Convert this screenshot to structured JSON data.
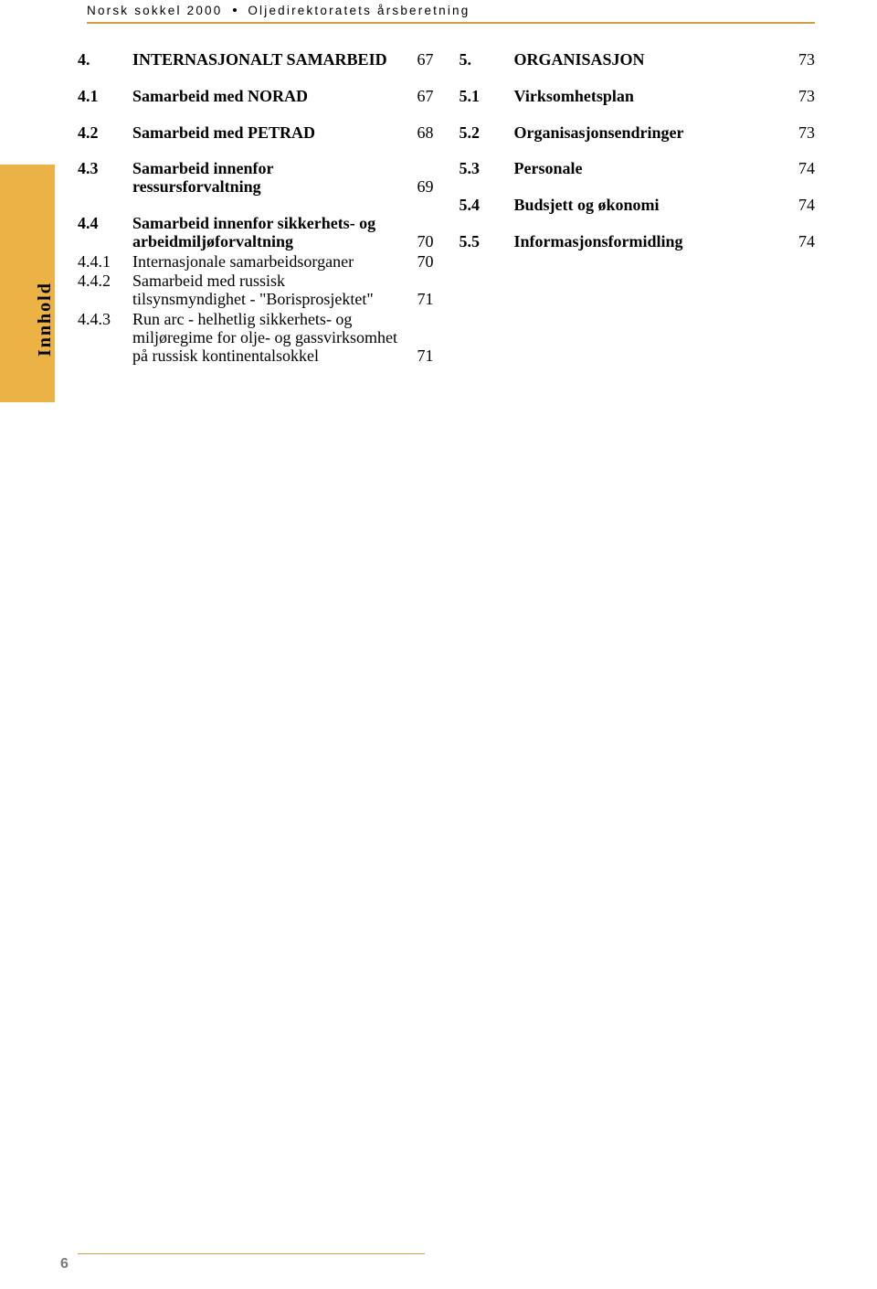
{
  "header": {
    "left": "Norsk sokkel 2000",
    "right": "Oljedirektoratets årsberetning"
  },
  "tab_label": "Innhold",
  "page_number": "6",
  "left_col": [
    {
      "num": "4.",
      "title": "INTERNASJONALT SAMARBEID",
      "page": "67",
      "bold": true,
      "cls": ""
    },
    {
      "num": "4.1",
      "title": "Samarbeid med NORAD",
      "page": "67",
      "bold": true,
      "cls": ""
    },
    {
      "num": "4.2",
      "title": "Samarbeid med PETRAD",
      "page": "68",
      "bold": true,
      "cls": ""
    },
    {
      "num": "4.3",
      "title": "Samarbeid innenfor ressursforvaltning",
      "page": "69",
      "bold": true,
      "cls": ""
    },
    {
      "num": "4.4",
      "title": "Samarbeid innenfor sikkerhets-  og arbeidmiljøforvaltning",
      "page": "70",
      "bold": true,
      "cls": "tight"
    },
    {
      "num": "4.4.1",
      "title": "Internasjonale samarbeidsorganer",
      "page": "70",
      "bold": false,
      "cls": "sub"
    },
    {
      "num": "4.4.2",
      "title": "Samarbeid med russisk tilsynsmyndighet - \"Borisprosjektet\"",
      "page": "71",
      "bold": false,
      "cls": "sub"
    },
    {
      "num": "4.4.3",
      "title": "Run arc - helhetlig sikkerhets- og miljøregime for olje- og gassvirksomhet på russisk kontinentalsokkel",
      "page": "71",
      "bold": false,
      "cls": "sub"
    }
  ],
  "right_col": [
    {
      "num": "5.",
      "title": "ORGANISASJON",
      "page": "73",
      "bold": true,
      "cls": ""
    },
    {
      "num": "5.1",
      "title": "Virksomhetsplan",
      "page": "73",
      "bold": true,
      "cls": ""
    },
    {
      "num": "5.2",
      "title": "Organisasjonsendringer",
      "page": "73",
      "bold": true,
      "cls": ""
    },
    {
      "num": "5.3",
      "title": "Personale",
      "page": "74",
      "bold": true,
      "cls": ""
    },
    {
      "num": "5.4",
      "title": "Budsjett og økonomi",
      "page": "74",
      "bold": true,
      "cls": ""
    },
    {
      "num": "5.5",
      "title": "Informasjonsformidling",
      "page": "74",
      "bold": true,
      "cls": ""
    }
  ]
}
